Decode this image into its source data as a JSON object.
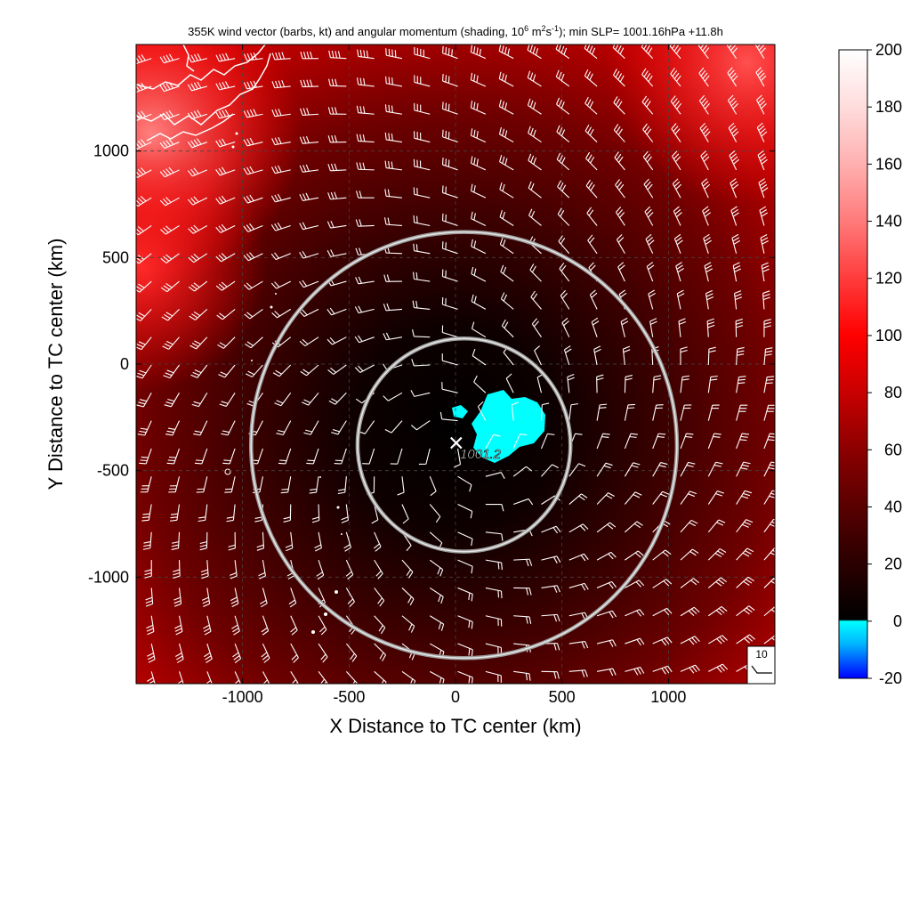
{
  "title": {
    "prefix": "355K wind vector (barbs, kt) and angular momentum (shading, 10",
    "exp1": "6",
    "mid1": " m",
    "exp2": "2",
    "mid2": "s",
    "exp3": "-1",
    "suffix": "); min SLP= 1001.16hPa  +11.8h"
  },
  "chart_data": {
    "type": "heatmap",
    "xlabel": "X Distance to TC center (km)",
    "ylabel": "Y Distance to TC center (km)",
    "xlim": [
      -1500,
      1500
    ],
    "ylim": [
      -1500,
      1500
    ],
    "xticks": [
      -1000,
      -500,
      0,
      500,
      1000
    ],
    "yticks": [
      -1000,
      -500,
      0,
      500,
      1000
    ],
    "grid": "dashed",
    "colorbar": {
      "range": [
        -20,
        200
      ],
      "ticks": [
        -20,
        0,
        20,
        40,
        60,
        80,
        100,
        120,
        140,
        160,
        180,
        200
      ],
      "colors": [
        {
          "value": -20,
          "color": "#0000ff"
        },
        {
          "value": -8,
          "color": "#00b4ff"
        },
        {
          "value": 0,
          "color": "#00ffff"
        },
        {
          "value": 0.5,
          "color": "#000000"
        },
        {
          "value": 30,
          "color": "#400000"
        },
        {
          "value": 60,
          "color": "#8c0000"
        },
        {
          "value": 80,
          "color": "#c80000"
        },
        {
          "value": 100,
          "color": "#ff0000"
        },
        {
          "value": 120,
          "color": "#ff3c3c"
        },
        {
          "value": 140,
          "color": "#ff7a7a"
        },
        {
          "value": 160,
          "color": "#ffb0b0"
        },
        {
          "value": 180,
          "color": "#ffdcdc"
        },
        {
          "value": 200,
          "color": "#ffffff"
        }
      ]
    },
    "center_label": "1001.2",
    "center": [
      20,
      -370
    ],
    "rings_km": [
      500,
      1000
    ],
    "ring_center": [
      40,
      -380
    ],
    "reference_barb": {
      "label": "10",
      "speed_kt": 10
    }
  }
}
